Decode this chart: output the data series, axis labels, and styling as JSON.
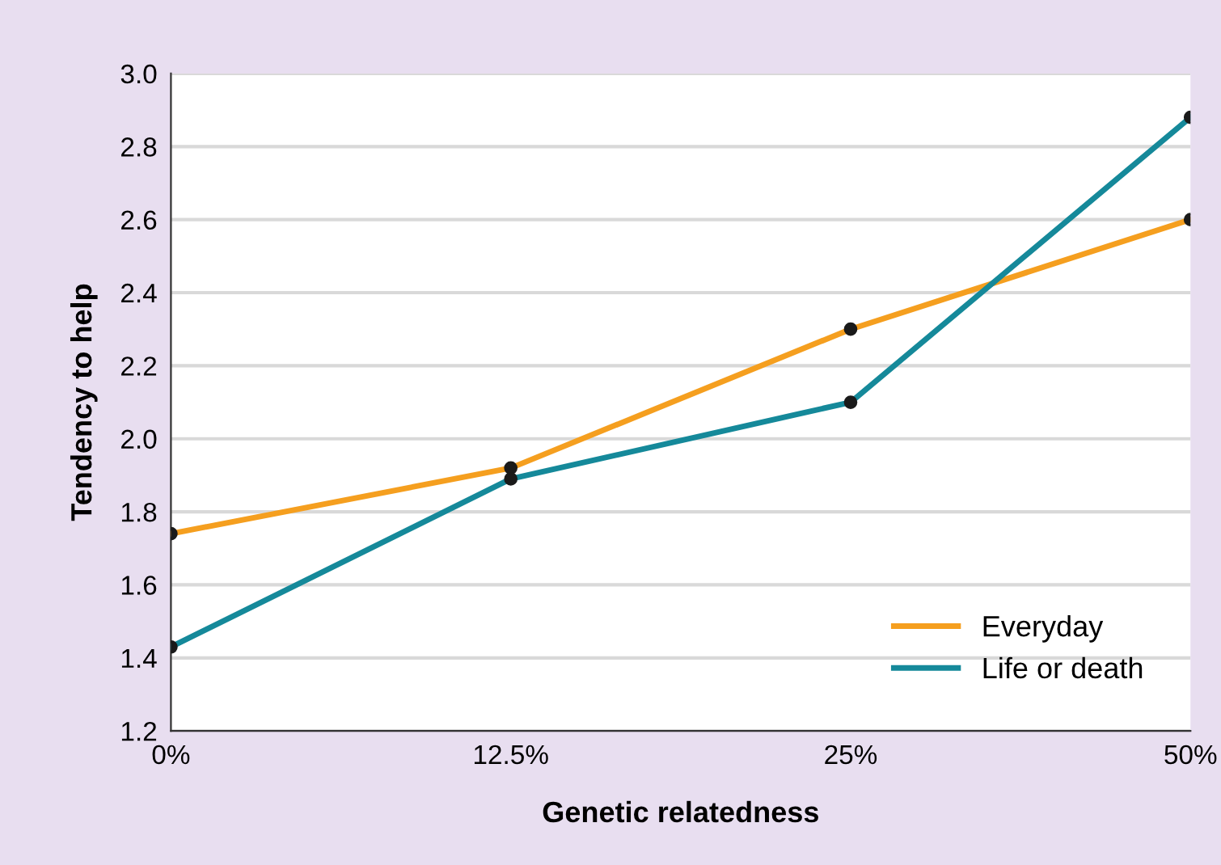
{
  "chart_data": {
    "type": "line",
    "xlabel": "Genetic relatedness",
    "ylabel": "Tendency to help",
    "categories": [
      "0%",
      "12.5%",
      "25%",
      "50%"
    ],
    "series": [
      {
        "name": "Everyday",
        "color": "#f59f1f",
        "values": [
          1.74,
          1.92,
          2.3,
          2.6
        ]
      },
      {
        "name": "Life or death",
        "color": "#15899a",
        "values": [
          1.43,
          1.89,
          2.1,
          2.88
        ]
      }
    ],
    "ylim": [
      1.2,
      3.0
    ],
    "yticks": [
      1.2,
      1.4,
      1.6,
      1.8,
      {
        "value": 2,
        "label": "2.0"
      },
      2.2,
      2.4,
      2.6,
      2.8,
      {
        "value": 3,
        "label": "3.0"
      }
    ],
    "grid": "y",
    "legend": "bottom right",
    "marker": "circle",
    "line_style": "solid"
  }
}
